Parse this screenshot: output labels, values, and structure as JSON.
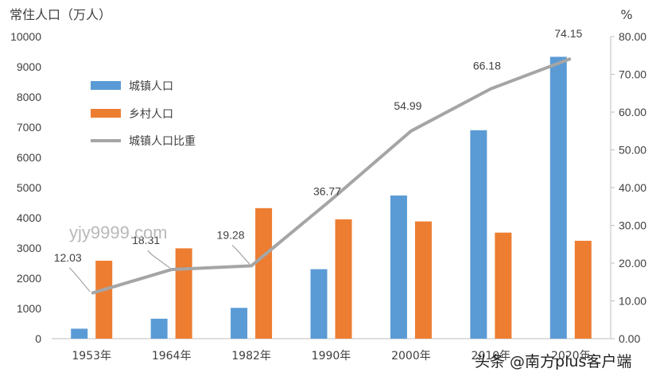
{
  "chart_data": {
    "type": "bar+line",
    "categories": [
      "1953年",
      "1964年",
      "1982年",
      "1990年",
      "2000年",
      "2010年",
      "2020年"
    ],
    "series": [
      {
        "name": "城镇人口",
        "type": "bar",
        "axis": "left",
        "color": "#5b9bd5",
        "values": [
          330,
          660,
          1020,
          2300,
          4740,
          6900,
          9330
        ]
      },
      {
        "name": "乡村人口",
        "type": "bar",
        "axis": "left",
        "color": "#ed7d31",
        "values": [
          2580,
          2990,
          4320,
          3950,
          3880,
          3510,
          3240
        ]
      },
      {
        "name": "城镇人口比重",
        "type": "line",
        "axis": "right",
        "color": "#a5a5a5",
        "values": [
          12.03,
          18.31,
          19.28,
          36.77,
          54.99,
          66.18,
          74.15
        ],
        "labels": [
          "12.03",
          "18.31",
          "19.28",
          "36.77",
          "54.99",
          "66.18",
          "74.15"
        ]
      }
    ],
    "ylabel": "常住人口（万人）",
    "y2label": "%",
    "ylim": [
      0,
      10000
    ],
    "y2lim": [
      0,
      80
    ],
    "yticks": [
      "0",
      "1000",
      "2000",
      "3000",
      "4000",
      "5000",
      "6000",
      "7000",
      "8000",
      "9000",
      "10000"
    ],
    "y2ticks": [
      "0.00",
      "10.00",
      "20.00",
      "30.00",
      "40.00",
      "50.00",
      "60.00",
      "70.00",
      "80.00"
    ],
    "grid": false,
    "legend": "top-left"
  },
  "watermarks": {
    "site": "yjy9999.com",
    "source": "头条 @南方plus客户端"
  }
}
